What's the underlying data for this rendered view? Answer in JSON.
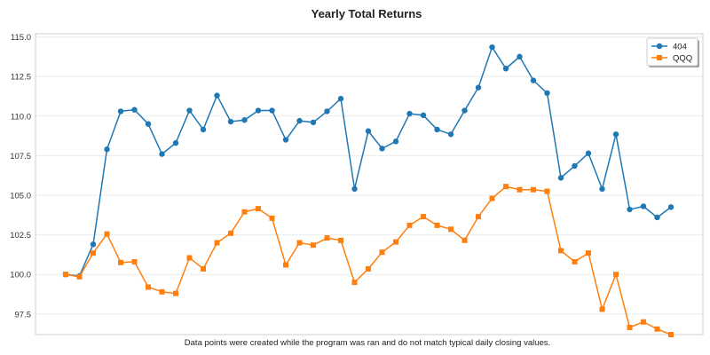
{
  "chart_data": {
    "type": "line",
    "title": "Yearly Total Returns",
    "xlabel": "Data points were created while the program was ran and do not match typical daily closing values.",
    "ylabel": "",
    "ylim": [
      96.2,
      115.2
    ],
    "yticks": [
      "97.5",
      "100.0",
      "102.5",
      "105.0",
      "107.5",
      "110.0",
      "112.5",
      "115.0"
    ],
    "grid": true,
    "legend_position": "top-right",
    "series": [
      {
        "name": "404",
        "color": "#1f77b4",
        "marker": "circle",
        "values": [
          100.0,
          99.9,
          101.9,
          107.9,
          110.3,
          110.4,
          109.5,
          107.6,
          108.3,
          110.35,
          109.15,
          111.3,
          109.65,
          109.75,
          110.35,
          110.35,
          108.5,
          109.7,
          109.6,
          110.3,
          111.1,
          105.4,
          109.05,
          107.95,
          108.4,
          110.15,
          110.05,
          109.15,
          108.85,
          110.35,
          111.8,
          114.35,
          113.0,
          113.75,
          112.25,
          111.45,
          106.1,
          106.85,
          107.65,
          105.4,
          108.85,
          104.1,
          104.3,
          103.6,
          104.25
        ]
      },
      {
        "name": "QQQ",
        "color": "#ff7f0e",
        "marker": "square",
        "values": [
          100.0,
          99.85,
          101.35,
          102.55,
          100.75,
          100.8,
          99.2,
          98.9,
          98.8,
          101.05,
          100.35,
          102.0,
          102.6,
          103.95,
          104.15,
          103.55,
          100.6,
          102.0,
          101.85,
          102.3,
          102.15,
          99.5,
          100.35,
          101.4,
          102.05,
          103.1,
          103.65,
          103.1,
          102.85,
          102.15,
          103.65,
          104.8,
          105.55,
          105.35,
          105.35,
          105.25,
          101.5,
          100.8,
          101.35,
          97.8,
          100.0,
          96.65,
          97.0,
          96.55,
          96.2
        ]
      }
    ]
  }
}
